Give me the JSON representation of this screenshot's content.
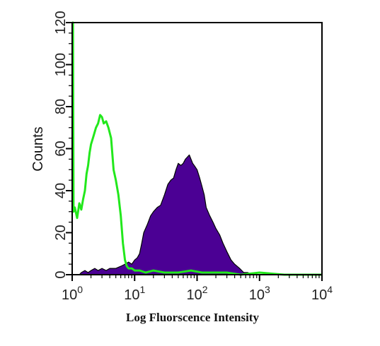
{
  "chart_data": {
    "type": "area",
    "title": "",
    "xlabel": "Log Fluorscence Intensity",
    "ylabel": "Counts",
    "xscale": "log",
    "xlim": [
      1,
      10000
    ],
    "ylim": [
      0,
      120
    ],
    "x_ticks": [
      {
        "base": "10",
        "exp": "0"
      },
      {
        "base": "10",
        "exp": "1"
      },
      {
        "base": "10",
        "exp": "2"
      },
      {
        "base": "10",
        "exp": "3"
      },
      {
        "base": "10",
        "exp": "4"
      }
    ],
    "y_ticks": [
      "0",
      "20",
      "40",
      "60",
      "80",
      "100",
      "120"
    ],
    "grid": false,
    "series": [
      {
        "style": "filled",
        "color": "#4b0094",
        "points": [
          [
            1.3,
            0
          ],
          [
            1.4,
            1
          ],
          [
            1.6,
            2
          ],
          [
            1.8,
            1
          ],
          [
            2.0,
            2
          ],
          [
            2.3,
            3
          ],
          [
            2.6,
            2
          ],
          [
            3.0,
            3
          ],
          [
            3.5,
            2
          ],
          [
            4.0,
            3
          ],
          [
            5.0,
            3
          ],
          [
            6.0,
            4
          ],
          [
            7.0,
            5
          ],
          [
            8.0,
            6
          ],
          [
            9.0,
            5
          ],
          [
            10,
            7
          ],
          [
            11,
            8
          ],
          [
            12,
            10
          ],
          [
            13,
            15
          ],
          [
            14,
            20
          ],
          [
            16,
            24
          ],
          [
            18,
            28
          ],
          [
            20,
            30
          ],
          [
            23,
            32
          ],
          [
            26,
            33
          ],
          [
            30,
            38
          ],
          [
            34,
            43
          ],
          [
            38,
            45
          ],
          [
            42,
            46
          ],
          [
            46,
            50
          ],
          [
            50,
            53
          ],
          [
            55,
            52
          ],
          [
            60,
            53
          ],
          [
            65,
            55
          ],
          [
            70,
            56
          ],
          [
            75,
            57
          ],
          [
            80,
            55
          ],
          [
            85,
            53
          ],
          [
            90,
            52
          ],
          [
            100,
            50
          ],
          [
            110,
            46
          ],
          [
            120,
            42
          ],
          [
            130,
            38
          ],
          [
            140,
            32
          ],
          [
            160,
            28
          ],
          [
            180,
            25
          ],
          [
            200,
            22
          ],
          [
            230,
            19
          ],
          [
            260,
            15
          ],
          [
            300,
            11
          ],
          [
            350,
            7
          ],
          [
            400,
            5
          ],
          [
            480,
            3
          ],
          [
            560,
            1
          ],
          [
            650,
            1
          ],
          [
            760,
            0
          ]
        ]
      },
      {
        "style": "line",
        "color": "#22e81c",
        "points": [
          [
            1.0,
            120
          ],
          [
            1.03,
            120
          ],
          [
            1.05,
            30
          ],
          [
            1.1,
            32
          ],
          [
            1.2,
            27
          ],
          [
            1.3,
            34
          ],
          [
            1.4,
            31
          ],
          [
            1.5,
            36
          ],
          [
            1.6,
            40
          ],
          [
            1.7,
            48
          ],
          [
            1.8,
            52
          ],
          [
            1.9,
            58
          ],
          [
            2.0,
            62
          ],
          [
            2.2,
            66
          ],
          [
            2.4,
            70
          ],
          [
            2.6,
            72
          ],
          [
            2.8,
            76
          ],
          [
            3.0,
            75
          ],
          [
            3.2,
            72
          ],
          [
            3.5,
            73
          ],
          [
            3.8,
            70
          ],
          [
            4.2,
            65
          ],
          [
            4.6,
            50
          ],
          [
            5.0,
            45
          ],
          [
            5.5,
            38
          ],
          [
            6.0,
            28
          ],
          [
            6.5,
            15
          ],
          [
            7.0,
            7
          ],
          [
            7.5,
            4
          ],
          [
            8.0,
            3
          ],
          [
            9.0,
            3
          ],
          [
            10,
            2
          ],
          [
            12,
            2
          ],
          [
            15,
            1
          ],
          [
            20,
            2
          ],
          [
            30,
            1
          ],
          [
            50,
            1
          ],
          [
            80,
            2
          ],
          [
            120,
            1
          ],
          [
            200,
            1
          ],
          [
            300,
            1
          ],
          [
            500,
            0
          ],
          [
            1000,
            1
          ],
          [
            2500,
            0
          ],
          [
            4000,
            0
          ],
          [
            10000,
            0
          ]
        ]
      }
    ]
  }
}
